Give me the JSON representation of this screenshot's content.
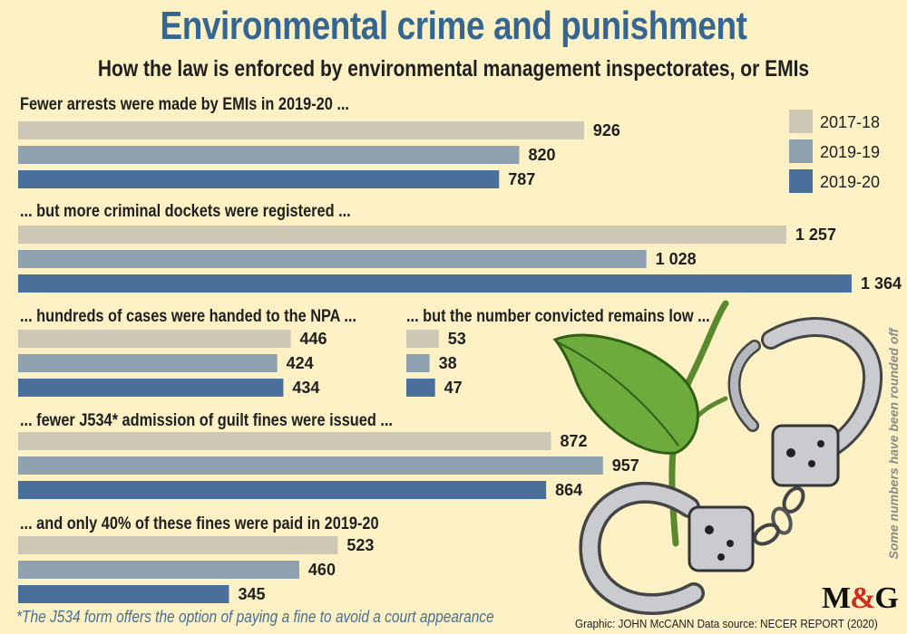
{
  "title": "Environmental crime and punishment",
  "subtitle": "How the law is enforced by environmental management inspectorates, or EMIs",
  "footnote": "*The J534 form offers the option of paying a fine to avoid a court appearance",
  "credit": "Graphic: JOHN McCANN  Data source: NECER REPORT (2020)",
  "side_note": "Some numbers have been rounded off",
  "logo": {
    "m": "M",
    "amp": "&",
    "g": "G"
  },
  "colors": {
    "background": "#fbf1c4",
    "title": "#356591",
    "series_2017_18": "#cdc8b6",
    "series_2019_19": "#8fa0ae",
    "series_2019_20": "#4a6f9a",
    "logo_amp": "#d42a20"
  },
  "chart_data": [
    {
      "type": "bar",
      "title": "Fewer arrests were made by EMIs in 2019-20 ...",
      "series": [
        {
          "name": "2017-18",
          "value": 926,
          "label": "926"
        },
        {
          "name": "2019-19",
          "value": 820,
          "label": "820"
        },
        {
          "name": "2019-20",
          "value": 787,
          "label": "787"
        }
      ],
      "legend": "top-right"
    },
    {
      "type": "bar",
      "title": "... but more criminal dockets were registered ...",
      "series": [
        {
          "name": "2017-18",
          "value": 1257,
          "label": "1 257"
        },
        {
          "name": "2019-19",
          "value": 1028,
          "label": "1 028"
        },
        {
          "name": "2019-20",
          "value": 1364,
          "label": "1 364"
        }
      ]
    },
    {
      "type": "bar",
      "title": "... hundreds of cases were handed to the NPA ...",
      "series": [
        {
          "name": "2017-18",
          "value": 446,
          "label": "446"
        },
        {
          "name": "2019-19",
          "value": 424,
          "label": "424"
        },
        {
          "name": "2019-20",
          "value": 434,
          "label": "434"
        }
      ]
    },
    {
      "type": "bar",
      "title": "... but the number convicted remains low ...",
      "series": [
        {
          "name": "2017-18",
          "value": 53,
          "label": "53"
        },
        {
          "name": "2019-19",
          "value": 38,
          "label": "38"
        },
        {
          "name": "2019-20",
          "value": 47,
          "label": "47"
        }
      ]
    },
    {
      "type": "bar",
      "title": "... fewer J534* admission of guilt fines were issued ...",
      "series": [
        {
          "name": "2017-18",
          "value": 872,
          "label": "872"
        },
        {
          "name": "2019-19",
          "value": 957,
          "label": "957"
        },
        {
          "name": "2019-20",
          "value": 864,
          "label": "864"
        }
      ]
    },
    {
      "type": "bar",
      "title": "... and only 40% of these fines were paid in 2019-20",
      "series": [
        {
          "name": "2017-18",
          "value": 523,
          "label": "523"
        },
        {
          "name": "2019-19",
          "value": 460,
          "label": "460"
        },
        {
          "name": "2019-20",
          "value": 345,
          "label": "345"
        }
      ]
    }
  ],
  "legend": [
    {
      "name": "2017-18"
    },
    {
      "name": "2019-19"
    },
    {
      "name": "2019-20"
    }
  ]
}
